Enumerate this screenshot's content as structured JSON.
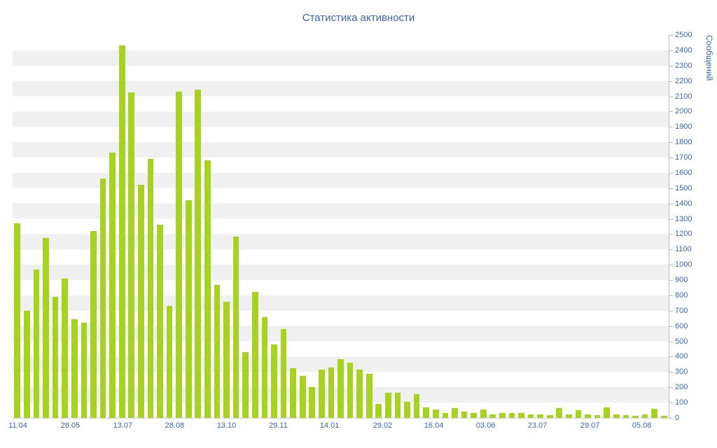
{
  "colors": {
    "bar": "#a8d221",
    "axis_text": "#3e66a6",
    "title_text": "#3e66a6",
    "stripe": "#f0f0f0",
    "axis_line": "#b3bccd"
  },
  "chart_data": {
    "type": "bar",
    "title": "Статистика активности",
    "xlabel": "",
    "ylabel": "Сообщений",
    "ylim": [
      0,
      2500
    ],
    "ytick_step": 100,
    "grid": "horizontal-stripes",
    "legend": "none",
    "x_labels": [
      {
        "text": "11.04",
        "pos": 0.008
      },
      {
        "text": "28.05",
        "pos": 0.088
      },
      {
        "text": "13.07",
        "pos": 0.168
      },
      {
        "text": "28.08",
        "pos": 0.247
      },
      {
        "text": "13.10",
        "pos": 0.326
      },
      {
        "text": "29.11",
        "pos": 0.405
      },
      {
        "text": "14.01",
        "pos": 0.483
      },
      {
        "text": "29.02",
        "pos": 0.564
      },
      {
        "text": "16.04",
        "pos": 0.642
      },
      {
        "text": "03.06",
        "pos": 0.721
      },
      {
        "text": "23.07",
        "pos": 0.8
      },
      {
        "text": "29.07",
        "pos": 0.88
      },
      {
        "text": "05.08",
        "pos": 0.959
      }
    ],
    "values": [
      1270,
      700,
      970,
      1175,
      790,
      910,
      645,
      620,
      1220,
      1565,
      1730,
      2430,
      2125,
      1520,
      1690,
      1260,
      730,
      2130,
      1420,
      2145,
      1680,
      870,
      760,
      1185,
      430,
      825,
      660,
      480,
      580,
      325,
      275,
      200,
      315,
      330,
      385,
      360,
      315,
      290,
      90,
      165,
      165,
      105,
      155,
      70,
      55,
      30,
      65,
      40,
      30,
      55,
      25,
      30,
      30,
      30,
      25,
      25,
      20,
      65,
      25,
      50,
      25,
      20,
      70,
      25,
      20,
      15,
      25,
      60,
      15
    ]
  }
}
